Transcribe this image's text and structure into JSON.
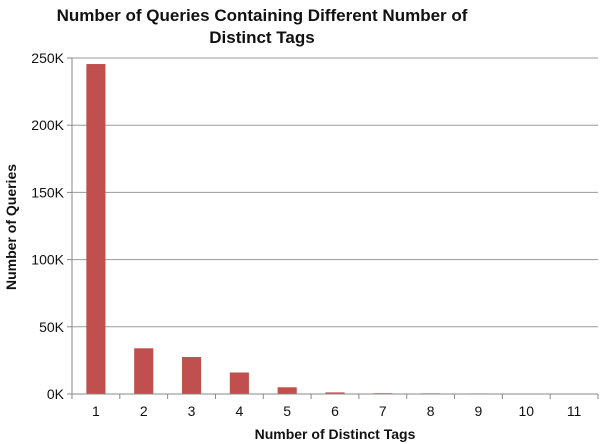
{
  "chart_data": {
    "type": "bar",
    "title_lines": [
      "Number of Queries Containing Different Number of",
      "Distinct Tags"
    ],
    "xlabel": "Number of Distinct Tags",
    "ylabel": "Number of Queries",
    "categories": [
      "1",
      "2",
      "3",
      "4",
      "5",
      "6",
      "7",
      "8",
      "9",
      "10",
      "11"
    ],
    "values": [
      245500,
      34000,
      27500,
      16000,
      5000,
      1200,
      600,
      500,
      400,
      150,
      350
    ],
    "ylim": [
      0,
      250000
    ],
    "yticks": [
      {
        "value": 0,
        "label": "0K"
      },
      {
        "value": 50000,
        "label": "50K"
      },
      {
        "value": 100000,
        "label": "100K"
      },
      {
        "value": 150000,
        "label": "150K"
      },
      {
        "value": 200000,
        "label": "200K"
      },
      {
        "value": 250000,
        "label": "250K"
      }
    ],
    "grid": true,
    "legend": "none",
    "bar_color": "#c0504d"
  }
}
